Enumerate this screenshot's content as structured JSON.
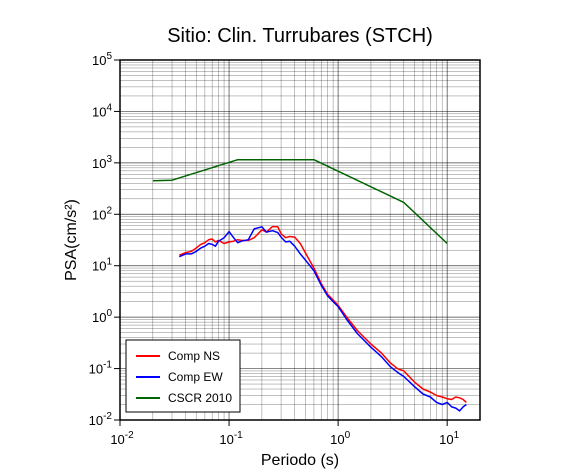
{
  "chart_data": {
    "type": "line",
    "title": "Sitio: Clin. Turrubares (STCH)",
    "xlabel": "Periodo (s)",
    "ylabel": "PSA(cm/s²)",
    "x_scale": "log",
    "y_scale": "log",
    "xlim": [
      0.01,
      20
    ],
    "ylim": [
      0.01,
      100000
    ],
    "grid": true,
    "legend_position": "bottom-left",
    "x_ticks": [
      "10-2",
      "10-1",
      "100",
      "101"
    ],
    "y_ticks": [
      "10-2",
      "10-1",
      "100",
      "101",
      "102",
      "103",
      "104",
      "105"
    ],
    "series": [
      {
        "name": "Comp NS",
        "color": "#ff0000",
        "x": [
          0.035,
          0.04,
          0.045,
          0.05,
          0.055,
          0.06,
          0.065,
          0.07,
          0.075,
          0.08,
          0.09,
          0.1,
          0.11,
          0.12,
          0.13,
          0.15,
          0.17,
          0.2,
          0.22,
          0.25,
          0.28,
          0.3,
          0.33,
          0.36,
          0.4,
          0.45,
          0.5,
          0.6,
          0.7,
          0.8,
          1.0,
          1.2,
          1.5,
          2.0,
          2.5,
          3.0,
          3.5,
          4.0,
          5.0,
          6.0,
          7.0,
          8.0,
          9.0,
          10.0,
          11.0,
          12.0,
          13.0,
          14.0,
          15.0
        ],
        "values": [
          16,
          18,
          19,
          22,
          26,
          28,
          32,
          33,
          29,
          31,
          27,
          29,
          30,
          32,
          31,
          31,
          35,
          50,
          45,
          58,
          57,
          42,
          35,
          37,
          36,
          27,
          18,
          9,
          4.5,
          2.8,
          1.7,
          1.0,
          0.55,
          0.3,
          0.2,
          0.13,
          0.1,
          0.09,
          0.055,
          0.04,
          0.035,
          0.03,
          0.028,
          0.026,
          0.025,
          0.028,
          0.027,
          0.025,
          0.022
        ]
      },
      {
        "name": "Comp EW",
        "color": "#0000ff",
        "x": [
          0.035,
          0.04,
          0.045,
          0.05,
          0.055,
          0.06,
          0.065,
          0.07,
          0.075,
          0.08,
          0.09,
          0.1,
          0.11,
          0.12,
          0.13,
          0.15,
          0.17,
          0.2,
          0.22,
          0.25,
          0.28,
          0.3,
          0.33,
          0.36,
          0.4,
          0.45,
          0.5,
          0.6,
          0.7,
          0.8,
          1.0,
          1.2,
          1.5,
          2.0,
          2.5,
          3.0,
          3.5,
          4.0,
          5.0,
          6.0,
          7.0,
          8.0,
          9.0,
          10.0,
          11.0,
          12.0,
          13.0,
          14.0,
          15.0
        ],
        "values": [
          15,
          17,
          17,
          19,
          22,
          24,
          27,
          26,
          24,
          30,
          35,
          46,
          35,
          28,
          30,
          32,
          52,
          57,
          45,
          48,
          44,
          36,
          29,
          30,
          24,
          17,
          13,
          8,
          4.2,
          2.6,
          1.6,
          0.9,
          0.48,
          0.26,
          0.17,
          0.11,
          0.085,
          0.07,
          0.045,
          0.032,
          0.028,
          0.022,
          0.02,
          0.022,
          0.018,
          0.017,
          0.015,
          0.018,
          0.02
        ]
      },
      {
        "name": "CSCR 2010",
        "color": "#006400",
        "x": [
          0.02,
          0.03,
          0.12,
          0.6,
          4.0,
          10.0
        ],
        "values": [
          450,
          460,
          1150,
          1150,
          170,
          27
        ]
      }
    ]
  }
}
